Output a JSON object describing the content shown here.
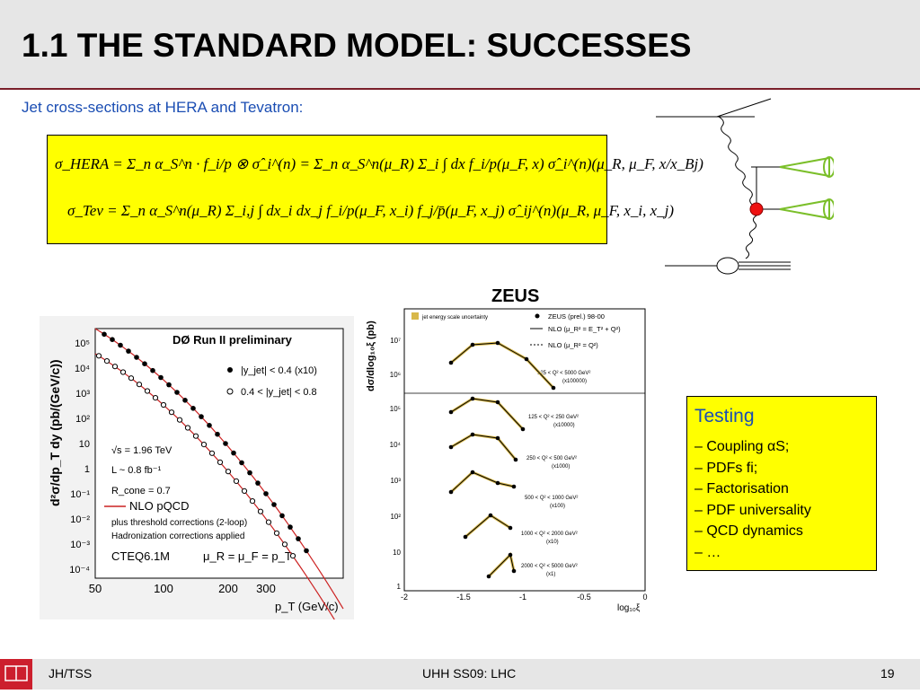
{
  "slide": {
    "title": "1.1 THE STANDARD MODEL: SUCCESSES",
    "subtitle": "Jet cross-sections at HERA and Tevatron:"
  },
  "formulas": {
    "hera": "σ_HERA = Σ_n α_S^n · f_i/p ⊗ σ̂_i^(n) = Σ_n α_S^n(μ_R) Σ_i ∫ dx f_i/p(μ_F, x) σ̂_i^(n)(μ_R, μ_F, x/x_Bj)",
    "tev": "σ_Tev = Σ_n α_S^n(μ_R) Σ_i,j ∫ dx_i dx_j f_i/p(μ_F, x_i) f_j/p̄(μ_F, x_j) σ̂_ij^(n)(μ_R, μ_F, x_i, x_j)"
  },
  "d0_plot": {
    "title": "DØ Run II preliminary",
    "ylabel": "d²σ/dp_T dy (pb/(GeV/c))",
    "xlabel": "p_T (GeV/c)",
    "xticks": [
      "50",
      "100",
      "200",
      "300"
    ],
    "yticks": [
      "10⁵",
      "10⁴",
      "10³",
      "10²",
      "10",
      "1",
      "10⁻¹",
      "10⁻²",
      "10⁻³",
      "10⁻⁴"
    ],
    "legend_filled": "|y_jet| < 0.4 (x10)",
    "legend_open": "0.4 < |y_jet| < 0.8",
    "info_sqrt": "√s = 1.96 TeV",
    "info_lumi": "L ~ 0.8 fb⁻¹",
    "info_rcone": "R_cone = 0.7",
    "nlo": "NLO pQCD",
    "corr1": "plus threshold corrections (2-loop)",
    "corr2": "Hadronization corrections applied",
    "pdf": "CTEQ6.1M",
    "scale": "μ_R = μ_F = p_T"
  },
  "zeus_plot": {
    "title": "ZEUS",
    "ylabel": "dσ/dlog₁₀ξ (pb)",
    "xlabel": "log₁₀ξ",
    "xticks": [
      "-2",
      "-1.5",
      "-1",
      "-0.5",
      "0"
    ],
    "yticks": [
      "10⁷",
      "10⁶",
      "10⁵",
      "10⁴",
      "10³",
      "10²",
      "10",
      "1"
    ],
    "legend_band": "jet energy scale uncertainty",
    "legend_data": "ZEUS (prel.) 98-00",
    "legend_nlo1": "NLO (μ_R² = E_T² + Q²)",
    "legend_nlo2": "NLO (μ_R² = Q²)",
    "bins": [
      {
        "label": "125 < Q² < 5000 GeV²",
        "scale": "(x100000)"
      },
      {
        "label": "125 < Q² < 250 GeV²",
        "scale": "(x10000)"
      },
      {
        "label": "250 < Q² < 500 GeV²",
        "scale": "(x1000)"
      },
      {
        "label": "500 < Q² < 1000 GeV²",
        "scale": "(x100)"
      },
      {
        "label": "1000 < Q² < 2000 GeV²",
        "scale": "(x10)"
      },
      {
        "label": "2000 < Q² < 5000 GeV²",
        "scale": "(x1)"
      }
    ]
  },
  "testing": {
    "title": "Testing",
    "items": [
      "– Coupling αS;",
      "– PDFs fi;",
      "– Factorisation",
      "– PDF universality",
      "– QCD dynamics",
      "– …"
    ]
  },
  "footer": {
    "left": "JH/TSS",
    "center": "UHH SS09: LHC",
    "page": "19"
  },
  "colors": {
    "accent": "#1a4db3",
    "highlight": "#ffff00",
    "rule": "#7a1f2a",
    "curve": "#cc2222"
  }
}
